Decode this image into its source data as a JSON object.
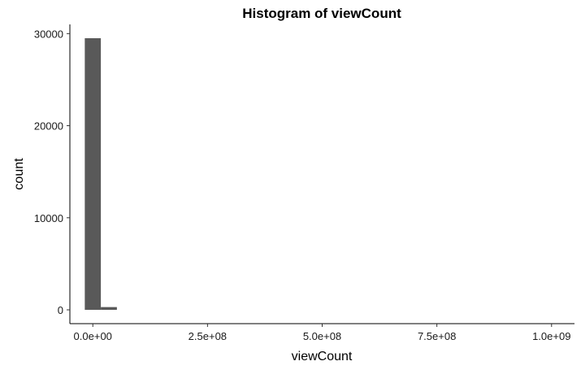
{
  "chart_data": {
    "type": "bar",
    "title": "Histogram of viewCount",
    "xlabel": "viewCount",
    "ylabel": "count",
    "xlim": [
      -50000000,
      1050000000
    ],
    "ylim": [
      -1500,
      31000
    ],
    "x_ticks": [
      {
        "value": 0,
        "label": "0.0e+00"
      },
      {
        "value": 250000000,
        "label": "2.5e+08"
      },
      {
        "value": 500000000,
        "label": "5.0e+08"
      },
      {
        "value": 750000000,
        "label": "7.5e+08"
      },
      {
        "value": 1000000000,
        "label": "1.0e+09"
      }
    ],
    "y_ticks": [
      {
        "value": 0,
        "label": "0"
      },
      {
        "value": 10000,
        "label": "10000"
      },
      {
        "value": 20000,
        "label": "20000"
      },
      {
        "value": 30000,
        "label": "30000"
      }
    ],
    "bins": [
      {
        "x0": -17500000,
        "x1": 17500000,
        "count": 29500
      },
      {
        "x0": 17500000,
        "x1": 52500000,
        "count": 300
      }
    ],
    "bar_color": "#595959",
    "grid": false,
    "legend": "none"
  }
}
